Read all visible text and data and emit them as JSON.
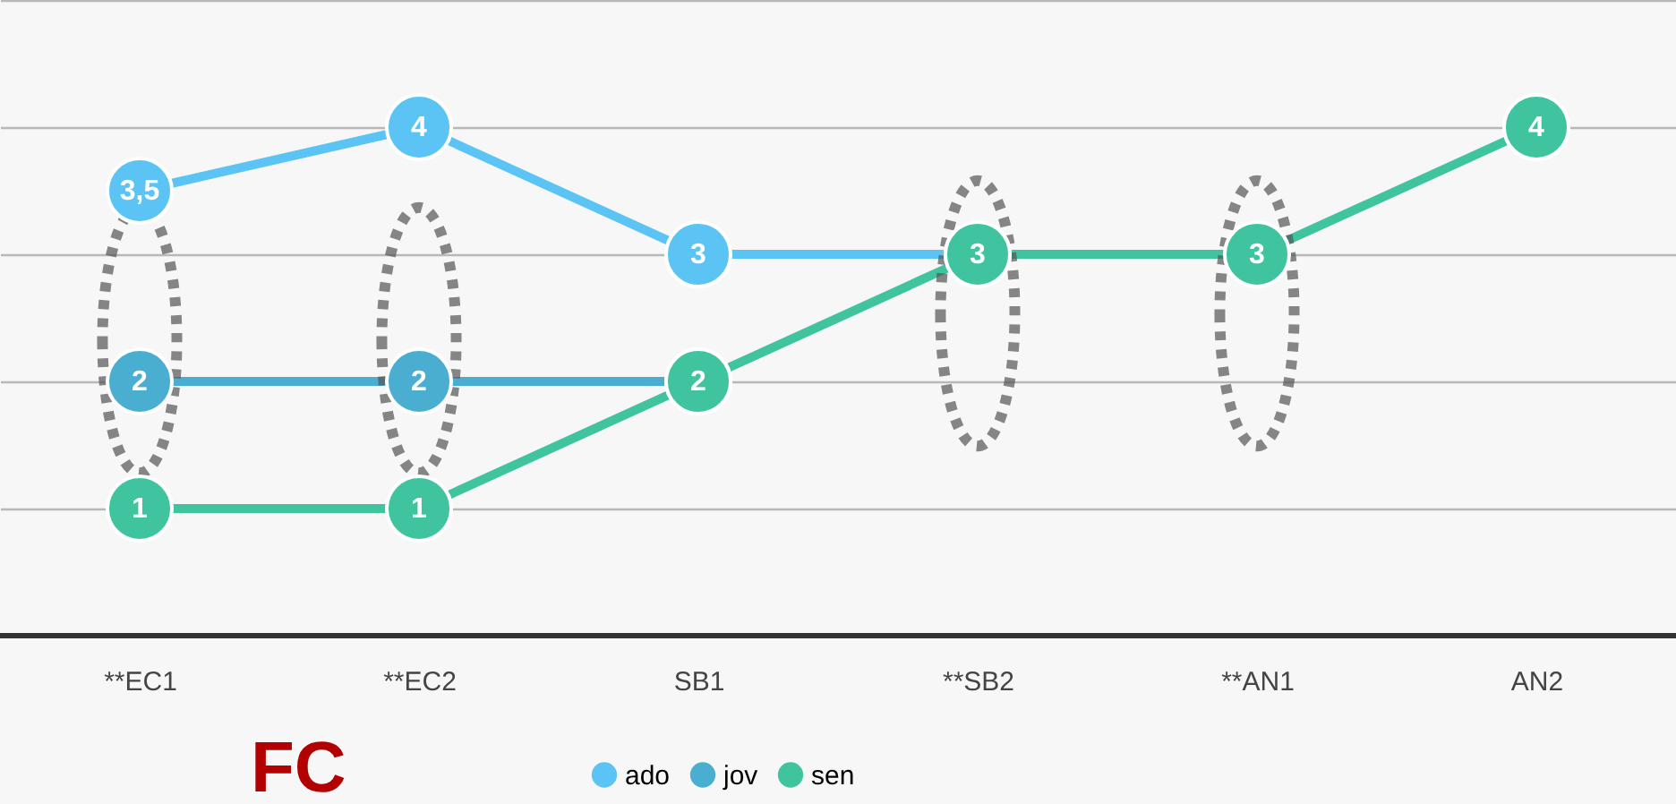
{
  "chart_data": {
    "type": "line",
    "categories": [
      "**EC1",
      "**EC2",
      "SB1",
      "**SB2",
      "**AN1",
      "AN2"
    ],
    "series": [
      {
        "name": "ado",
        "color": "#5bc4f5",
        "values": [
          3.5,
          4,
          3,
          3,
          null,
          null
        ],
        "value_labels": [
          "3,5",
          "4",
          "3",
          null,
          null,
          null
        ]
      },
      {
        "name": "jov",
        "color": "#4aaed0",
        "values": [
          2,
          2,
          2,
          null,
          null,
          null
        ],
        "value_labels": [
          "2",
          "2",
          null,
          null,
          null,
          null
        ]
      },
      {
        "name": "sen",
        "color": "#40c4a0",
        "values": [
          1,
          1,
          2,
          3,
          3,
          4
        ],
        "value_labels": [
          "1",
          "1",
          "2",
          "3",
          "3",
          "4"
        ]
      }
    ],
    "ylim": [
      0,
      5
    ],
    "yticks": [
      {
        "value": 0,
        "label": null
      },
      {
        "value": 1,
        "label": null
      },
      {
        "value": 2,
        "label": null
      },
      {
        "value": 3,
        "label": null
      },
      {
        "value": 4,
        "label": null
      },
      {
        "value": 5,
        "label": null
      }
    ],
    "tick_labels": "x",
    "grid": "y",
    "legend": "bottom",
    "marker": "circle",
    "line_style": "solid",
    "annotations": [
      "FC"
    ]
  }
}
